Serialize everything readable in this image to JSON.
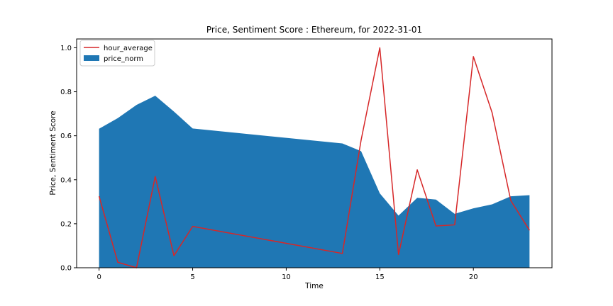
{
  "chart_data": {
    "type": "area",
    "title": "Price, Sentiment Score : Ethereum, for 2022-31-01",
    "xlabel": "Time",
    "ylabel": "Price, Sentiment Score",
    "xlim": [
      -1.2,
      24.2
    ],
    "ylim": [
      0.0,
      1.04
    ],
    "x_ticks": [
      0,
      5,
      10,
      15,
      20
    ],
    "y_ticks": [
      0.0,
      0.2,
      0.4,
      0.6,
      0.8,
      1.0
    ],
    "x_tick_labels": [
      "0",
      "5",
      "10",
      "15",
      "20"
    ],
    "y_tick_labels": [
      "0.0",
      "0.2",
      "0.4",
      "0.6",
      "0.8",
      "1.0"
    ],
    "grid": false,
    "legend_placement": "top-left",
    "series": [
      {
        "name": "hour_average",
        "kind": "line",
        "color": "#d62728",
        "x": [
          0,
          1,
          2,
          3,
          4,
          5,
          13,
          14,
          15,
          16,
          17,
          18,
          19,
          20,
          21,
          22,
          23
        ],
        "y": [
          0.325,
          0.025,
          0.0,
          0.415,
          0.055,
          0.188,
          0.065,
          0.58,
          1.0,
          0.06,
          0.445,
          0.19,
          0.195,
          0.96,
          0.705,
          0.305,
          0.17
        ]
      },
      {
        "name": "price_norm",
        "kind": "area",
        "color": "#1f77b4",
        "x": [
          0,
          1,
          2,
          3,
          4,
          5,
          13,
          14,
          15,
          16,
          17,
          18,
          19,
          20,
          21,
          22,
          23
        ],
        "y": [
          0.632,
          0.68,
          0.74,
          0.782,
          0.71,
          0.633,
          0.565,
          0.53,
          0.338,
          0.237,
          0.318,
          0.31,
          0.245,
          0.27,
          0.288,
          0.325,
          0.33
        ]
      }
    ]
  }
}
